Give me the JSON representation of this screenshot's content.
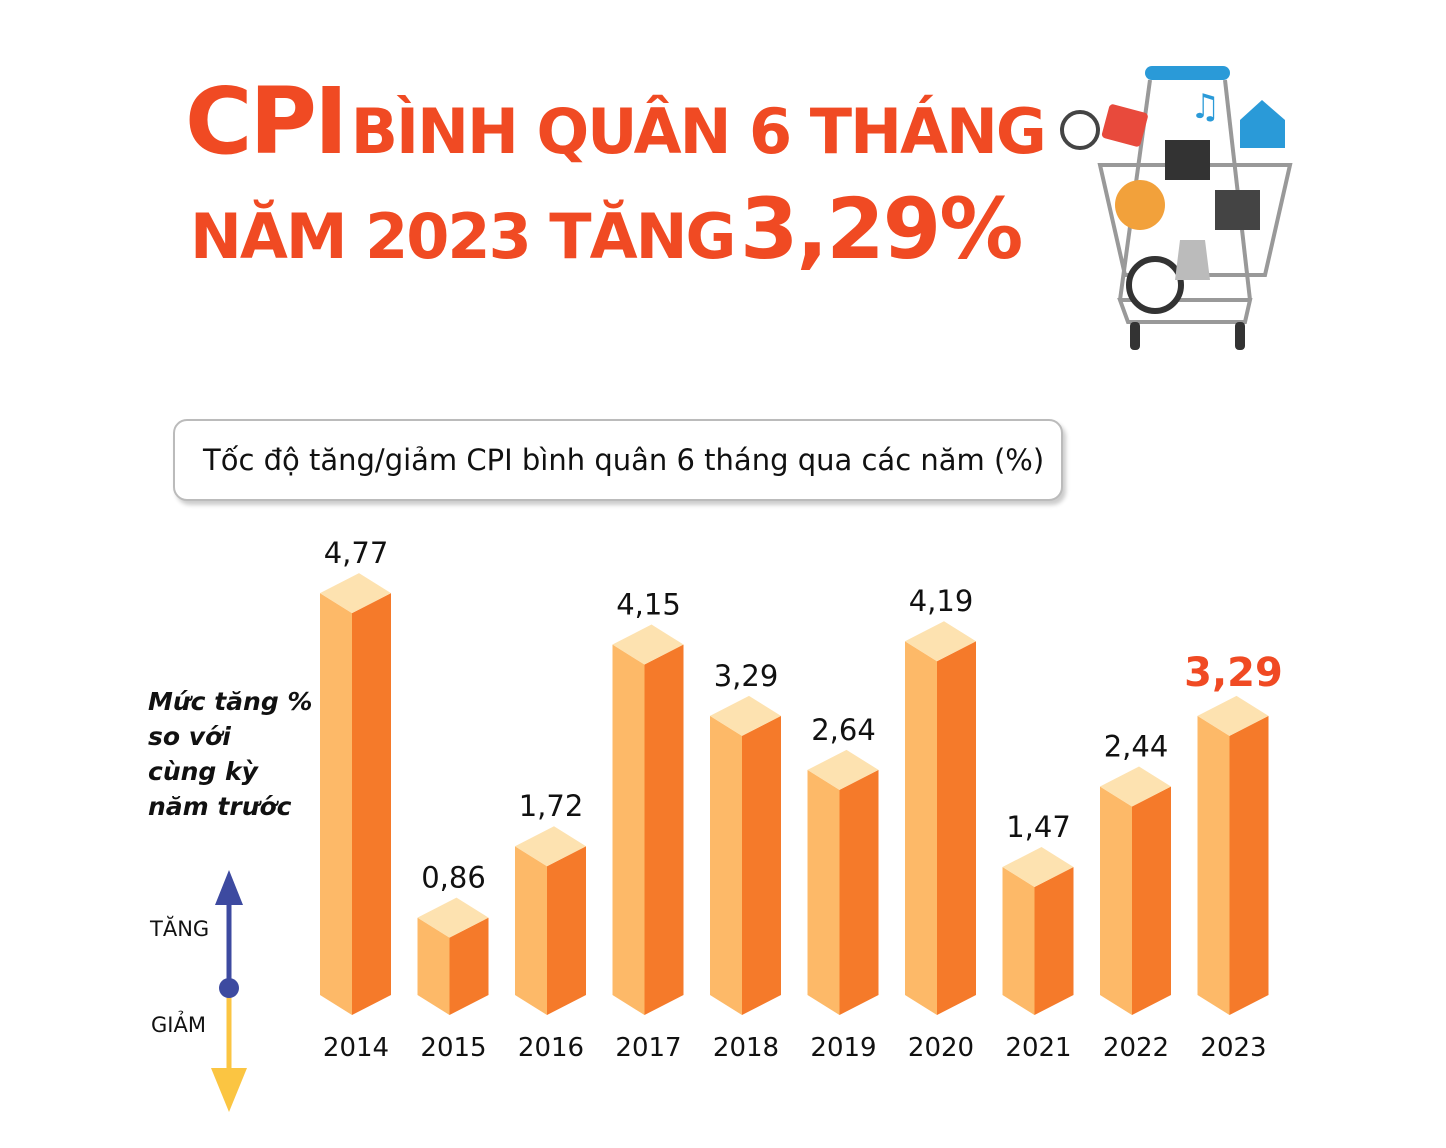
{
  "title": {
    "line1_big": "CPI",
    "line1_rest": "BÌNH QUÂN 6 THÁNG",
    "line2_rest": "NĂM 2023 TĂNG",
    "line2_big": "3,29%"
  },
  "subtitle": "Tốc độ tăng/giảm CPI bình quân 6 tháng qua các năm (%)",
  "note": [
    "Mức tăng %",
    "so với",
    "cùng kỳ",
    "năm trước"
  ],
  "legend": {
    "up": "TĂNG",
    "down": "GIẢM"
  },
  "colors": {
    "title": "#f04a23",
    "bar_left": "#fdb968",
    "bar_right": "#f57a2a",
    "bar_top": "#fde2b0",
    "highlight": "#f04a23",
    "up_arrow": "#3d4aa0",
    "down_arrow": "#fbc542"
  },
  "chart_data": {
    "type": "bar",
    "categories": [
      "2014",
      "2015",
      "2016",
      "2017",
      "2018",
      "2019",
      "2020",
      "2021",
      "2022",
      "2023"
    ],
    "values": [
      4.77,
      0.86,
      1.72,
      4.15,
      3.29,
      2.64,
      4.19,
      1.47,
      2.44,
      3.29
    ],
    "data_labels": [
      "4,77",
      "0,86",
      "1,72",
      "4,15",
      "3,29",
      "2,64",
      "4,19",
      "1,47",
      "2,44",
      "3,29"
    ],
    "highlight_index": 9,
    "title": "Tốc độ tăng/giảm CPI bình quân 6 tháng qua các năm (%)"
  }
}
